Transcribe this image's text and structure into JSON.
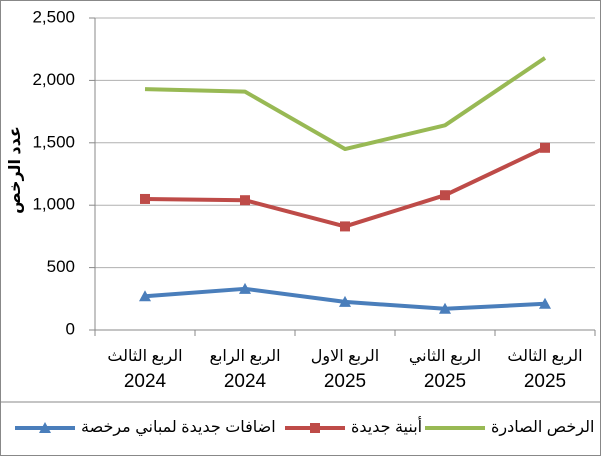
{
  "chart_data": {
    "type": "line",
    "y_label": "عدد الرخص",
    "categories": [
      [
        "الربع الثالث",
        "2024"
      ],
      [
        "الربع الرابع",
        "2024"
      ],
      [
        "الربع الاول",
        "2025"
      ],
      [
        "الربع الثاني",
        "2025"
      ],
      [
        "الربع الثالث",
        "2025"
      ]
    ],
    "series": [
      {
        "name": "اضافات جديدة لمباني مرخصة",
        "color": "#4a7ebb",
        "marker": "triangle",
        "values": [
          270,
          330,
          225,
          170,
          210
        ]
      },
      {
        "name": "أبنية جديدة",
        "color": "#be4b48",
        "marker": "square",
        "values": [
          1050,
          1040,
          830,
          1080,
          1460
        ]
      },
      {
        "name": "الرخص الصادرة",
        "color": "#98b954",
        "marker": "none",
        "values": [
          1930,
          1910,
          1450,
          1640,
          2180
        ]
      }
    ],
    "ylim": [
      0,
      2500
    ],
    "yticks": [
      0,
      500,
      {
        "value": 1000,
        "label": "1,000"
      },
      {
        "value": 1500,
        "label": "1,500"
      },
      {
        "value": 2000,
        "label": "2,000"
      },
      {
        "value": 2500,
        "label": "2,500"
      }
    ],
    "grid": true,
    "legend": "bottom"
  }
}
